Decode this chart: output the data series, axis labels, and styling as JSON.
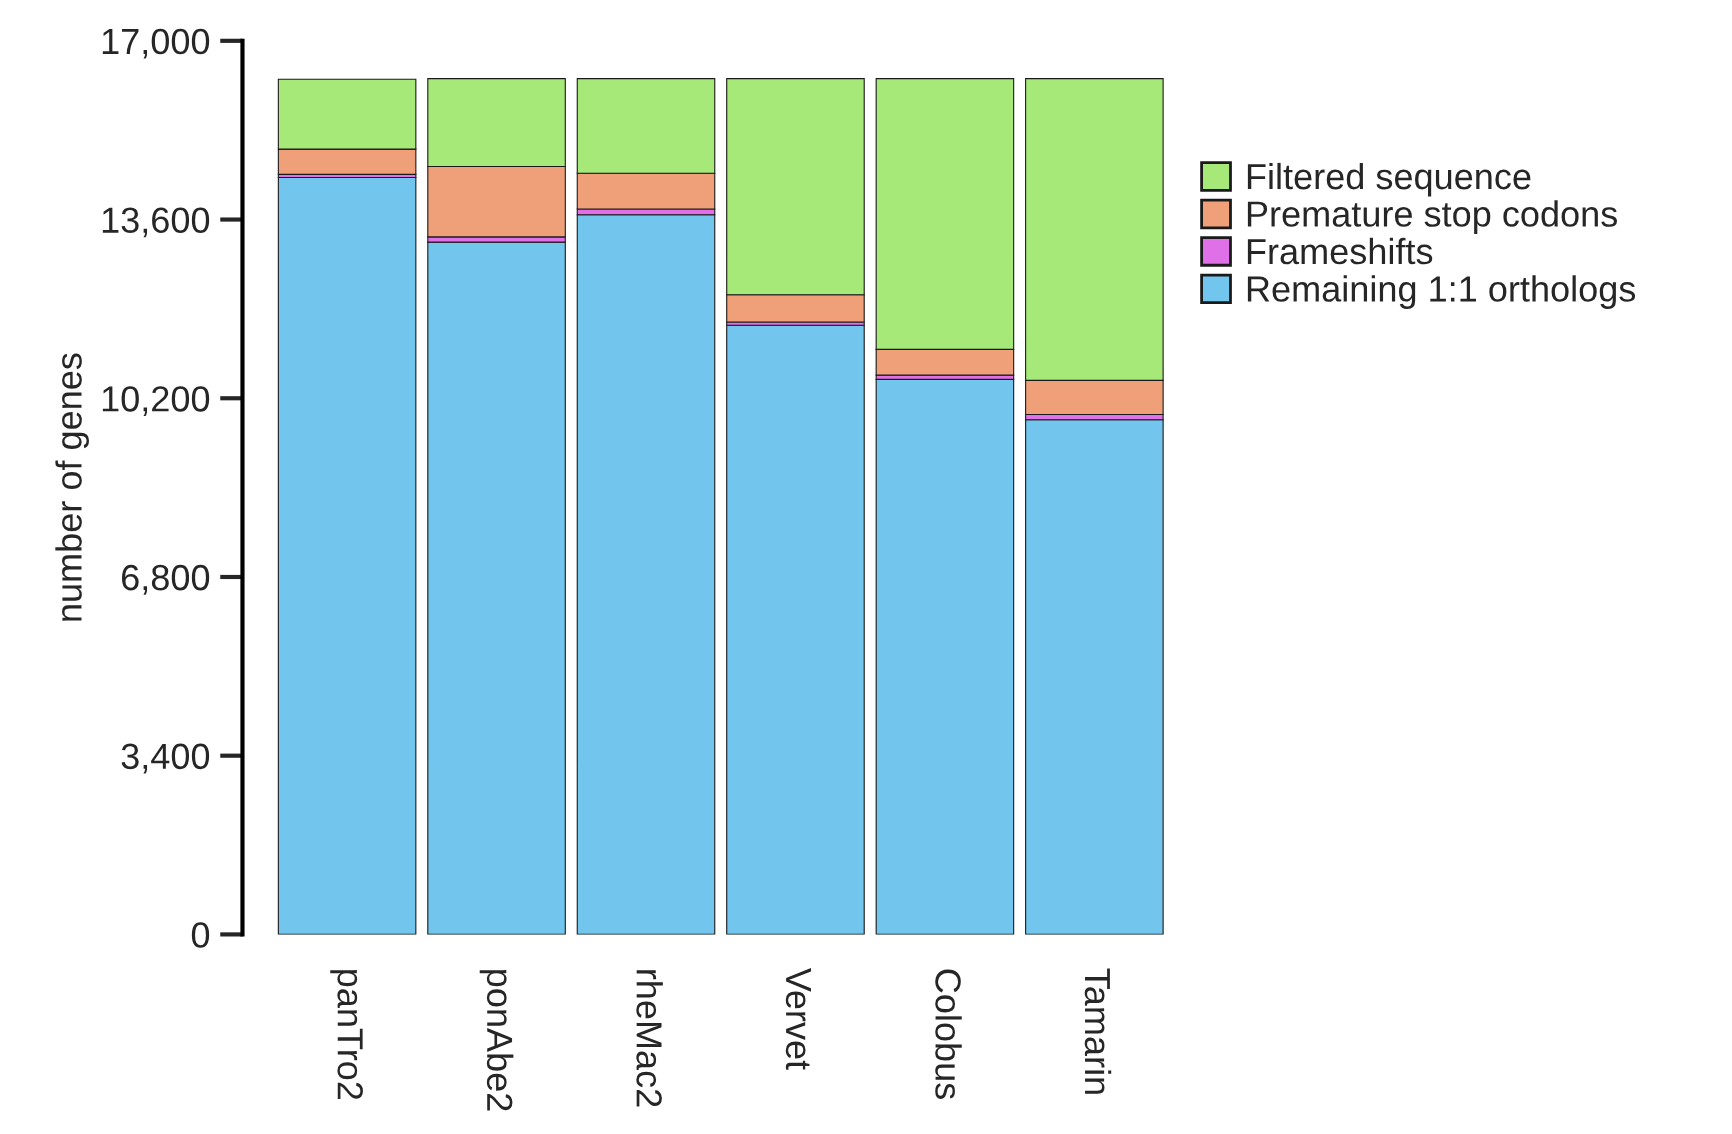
{
  "chart_data": {
    "type": "bar",
    "stacked": true,
    "ylabel": "number of genes",
    "categories": [
      "panTro2",
      "ponAbe2",
      "rheMac2",
      "Vervet",
      "Colobus",
      "Tamarin"
    ],
    "series": [
      {
        "name": "Remaining 1:1 orthologs",
        "color": "#72c5ec",
        "values": [
          14400,
          13170,
          13690,
          11590,
          10560,
          9790
        ]
      },
      {
        "name": "Frameshifts",
        "color": "#e070e8",
        "values": [
          60,
          100,
          110,
          60,
          80,
          100
        ]
      },
      {
        "name": "Premature stop codons",
        "color": "#f0a078",
        "values": [
          480,
          1340,
          680,
          520,
          490,
          650
        ]
      },
      {
        "name": "Filtered sequence",
        "color": "#a6e978",
        "values": [
          1330,
          1670,
          1800,
          4110,
          5150,
          5740
        ]
      }
    ],
    "ylim": [
      0,
      17000
    ],
    "yticks": [
      {
        "value": 0,
        "label": "0"
      },
      {
        "value": 3400,
        "label": "3,400"
      },
      {
        "value": 6800,
        "label": "6,800"
      },
      {
        "value": 10200,
        "label": "10,200"
      },
      {
        "value": 13600,
        "label": "13,600"
      },
      {
        "value": 17000,
        "label": "17,000"
      }
    ],
    "grid": false,
    "legend": "right"
  }
}
